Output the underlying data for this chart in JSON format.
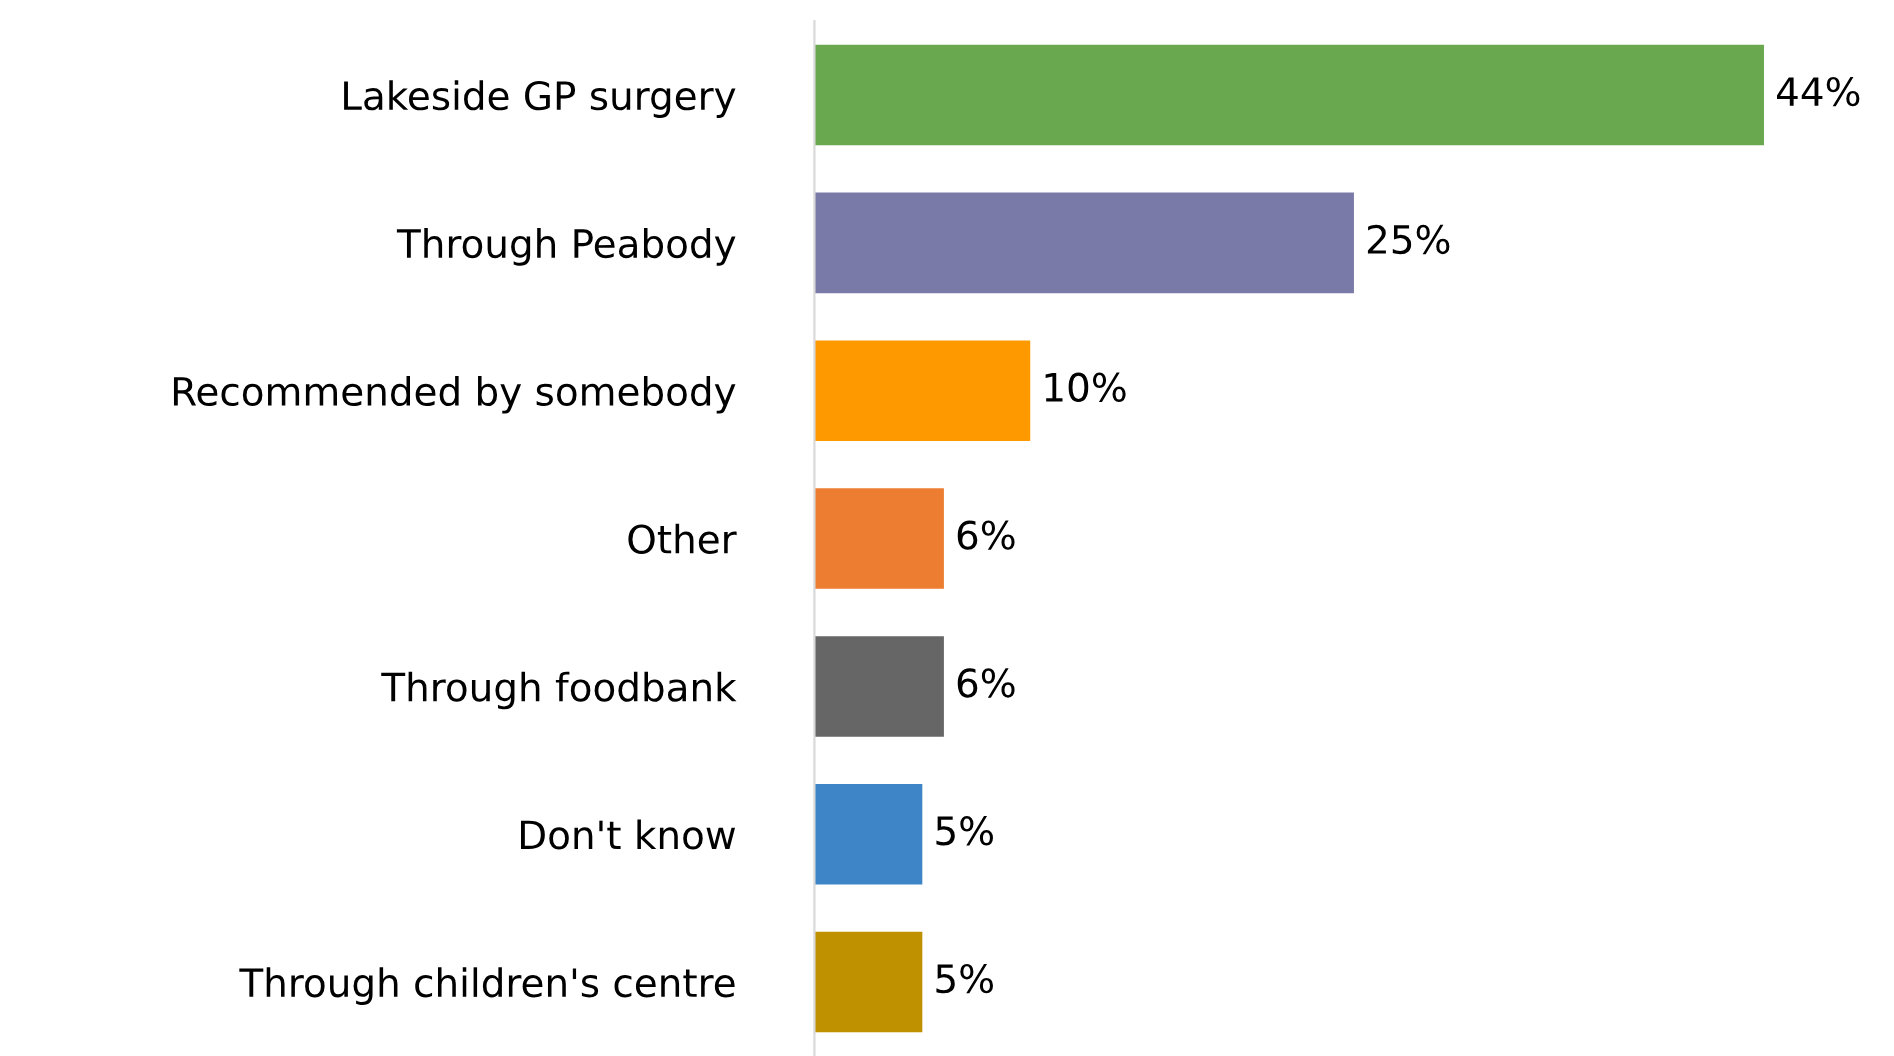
{
  "chart_data": {
    "type": "bar",
    "orientation": "horizontal",
    "categories": [
      "Lakeside GP surgery",
      "Through Peabody",
      "Recommended by somebody",
      "Other",
      "Through foodbank",
      "Don't know",
      "Through children's centre"
    ],
    "values": [
      44,
      25,
      10,
      6,
      6,
      5,
      5
    ],
    "value_labels": [
      "44%",
      "25%",
      "10%",
      "6%",
      "6%",
      "5%",
      "5%"
    ],
    "colors": [
      "#6aa84f",
      "#7a7aa8",
      "#ff9900",
      "#ed7d31",
      "#666666",
      "#3d85c6",
      "#bf9000"
    ],
    "grid": false,
    "legend": false
  }
}
